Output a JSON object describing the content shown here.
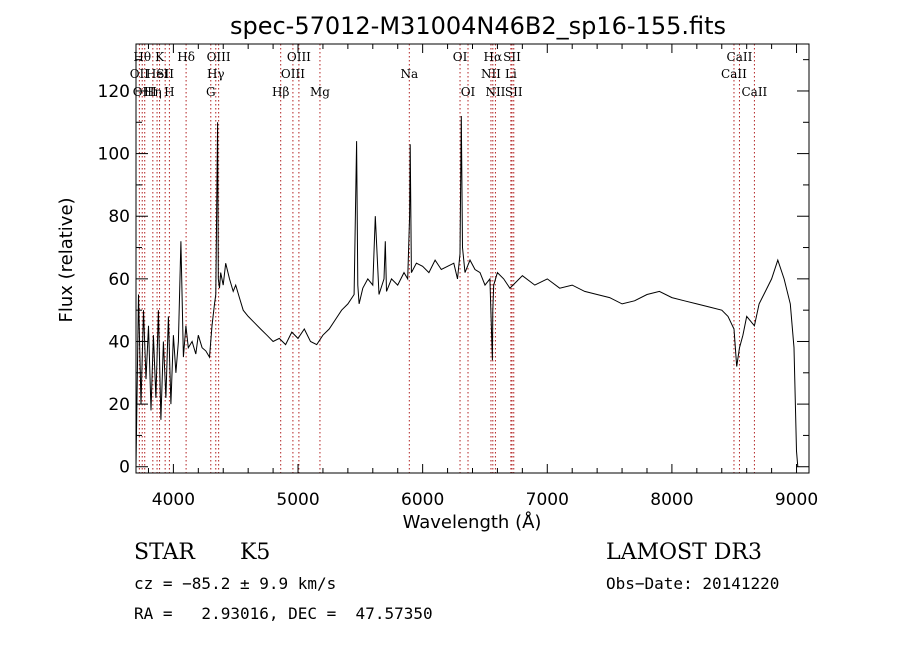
{
  "chart_data": {
    "type": "line",
    "title": "spec-57012-M31004N46B2_sp16-155.fits",
    "xlabel": "Wavelength (Å)",
    "ylabel": "Flux (relative)",
    "xlim": [
      3700,
      9100
    ],
    "ylim": [
      -2,
      135
    ],
    "xticks": [
      4000,
      5000,
      6000,
      7000,
      8000,
      9000
    ],
    "yticks": [
      0,
      20,
      40,
      60,
      80,
      100,
      120
    ],
    "grid": false,
    "line_color": "#000000",
    "marker_color": "#b22222",
    "series": [
      {
        "name": "flux",
        "x": [
          3700,
          3720,
          3740,
          3760,
          3780,
          3800,
          3820,
          3840,
          3860,
          3880,
          3900,
          3920,
          3940,
          3960,
          3980,
          4000,
          4020,
          4040,
          4060,
          4080,
          4100,
          4120,
          4150,
          4180,
          4200,
          4230,
          4260,
          4290,
          4310,
          4330,
          4340,
          4355,
          4360,
          4370,
          4380,
          4400,
          4420,
          4450,
          4480,
          4500,
          4530,
          4560,
          4600,
          4650,
          4700,
          4750,
          4800,
          4850,
          4900,
          4950,
          5000,
          5050,
          5100,
          5150,
          5200,
          5250,
          5300,
          5350,
          5400,
          5450,
          5470,
          5480,
          5490,
          5520,
          5560,
          5600,
          5620,
          5650,
          5690,
          5700,
          5710,
          5750,
          5800,
          5850,
          5880,
          5895,
          5900,
          5910,
          5950,
          6000,
          6050,
          6100,
          6150,
          6200,
          6250,
          6280,
          6300,
          6310,
          6320,
          6340,
          6380,
          6420,
          6460,
          6500,
          6540,
          6560,
          6563,
          6570,
          6600,
          6650,
          6700,
          6750,
          6800,
          6900,
          7000,
          7100,
          7200,
          7300,
          7400,
          7500,
          7600,
          7700,
          7800,
          7900,
          8000,
          8100,
          8200,
          8300,
          8400,
          8450,
          8498,
          8520,
          8542,
          8570,
          8600,
          8662,
          8700,
          8750,
          8800,
          8850,
          8900,
          8950,
          8980,
          9000,
          9010
        ],
        "y": [
          0,
          55,
          20,
          50,
          28,
          45,
          18,
          42,
          22,
          50,
          15,
          40,
          22,
          48,
          20,
          42,
          30,
          40,
          72,
          35,
          45,
          38,
          40,
          36,
          42,
          38,
          37,
          35,
          45,
          52,
          55,
          110,
          60,
          57,
          62,
          58,
          65,
          60,
          56,
          58,
          54,
          50,
          48,
          46,
          44,
          42,
          40,
          41,
          39,
          43,
          41,
          44,
          40,
          39,
          42,
          44,
          47,
          50,
          52,
          55,
          104,
          58,
          52,
          57,
          60,
          58,
          80,
          55,
          60,
          72,
          56,
          60,
          58,
          62,
          60,
          80,
          103,
          62,
          65,
          64,
          62,
          66,
          63,
          64,
          65,
          60,
          68,
          112,
          70,
          62,
          66,
          63,
          62,
          58,
          60,
          34,
          50,
          58,
          62,
          60,
          57,
          59,
          61,
          58,
          60,
          57,
          58,
          56,
          55,
          54,
          52,
          53,
          55,
          56,
          54,
          53,
          52,
          51,
          50,
          48,
          44,
          32,
          38,
          42,
          48,
          45,
          52,
          56,
          60,
          66,
          60,
          52,
          38,
          5,
          0
        ]
      }
    ],
    "lines": [
      {
        "wl": 3727,
        "name": "OII",
        "row": 1
      },
      {
        "wl": 3750,
        "name": "Hθ",
        "row": 0
      },
      {
        "wl": 3770,
        "name": "OIII",
        "row": 2
      },
      {
        "wl": 3835,
        "name": "Hη",
        "row": 2
      },
      {
        "wl": 3869,
        "name": "HeI",
        "row": 1
      },
      {
        "wl": 3889,
        "name": "K",
        "row": 0
      },
      {
        "wl": 3934,
        "name": "SII",
        "row": 1
      },
      {
        "wl": 3968,
        "name": "H",
        "row": 2
      },
      {
        "wl": 4102,
        "name": "Hδ",
        "row": 0
      },
      {
        "wl": 4300,
        "name": "G",
        "row": 2
      },
      {
        "wl": 4340,
        "name": "Hγ",
        "row": 1
      },
      {
        "wl": 4363,
        "name": "OIII",
        "row": 0
      },
      {
        "wl": 4861,
        "name": "Hβ",
        "row": 2
      },
      {
        "wl": 4959,
        "name": "OIII",
        "row": 1
      },
      {
        "wl": 5007,
        "name": "OIII",
        "row": 0
      },
      {
        "wl": 5176,
        "name": "Mg",
        "row": 2
      },
      {
        "wl": 5893,
        "name": "Na",
        "row": 1
      },
      {
        "wl": 6300,
        "name": "OI",
        "row": 0
      },
      {
        "wl": 6364,
        "name": "OI",
        "row": 2
      },
      {
        "wl": 6548,
        "name": "NII",
        "row": 1
      },
      {
        "wl": 6563,
        "name": "Hα",
        "row": 0
      },
      {
        "wl": 6584,
        "name": "NII",
        "row": 2
      },
      {
        "wl": 6708,
        "name": "Li",
        "row": 1
      },
      {
        "wl": 6717,
        "name": "SII",
        "row": 0
      },
      {
        "wl": 6731,
        "name": "SII",
        "row": 2
      },
      {
        "wl": 8498,
        "name": "CaII",
        "row": 1
      },
      {
        "wl": 8542,
        "name": "CaII",
        "row": 0
      },
      {
        "wl": 8662,
        "name": "CaII",
        "row": 2
      }
    ]
  },
  "info": {
    "object_class": "STAR",
    "subclass": "K5",
    "survey": "LAMOST DR3",
    "redshift": "cz = −85.2 ± 9.9 km/s",
    "obs_date": "Obs−Date: 20141220",
    "coords": "RA =   2.93016, DEC =  47.57350"
  }
}
